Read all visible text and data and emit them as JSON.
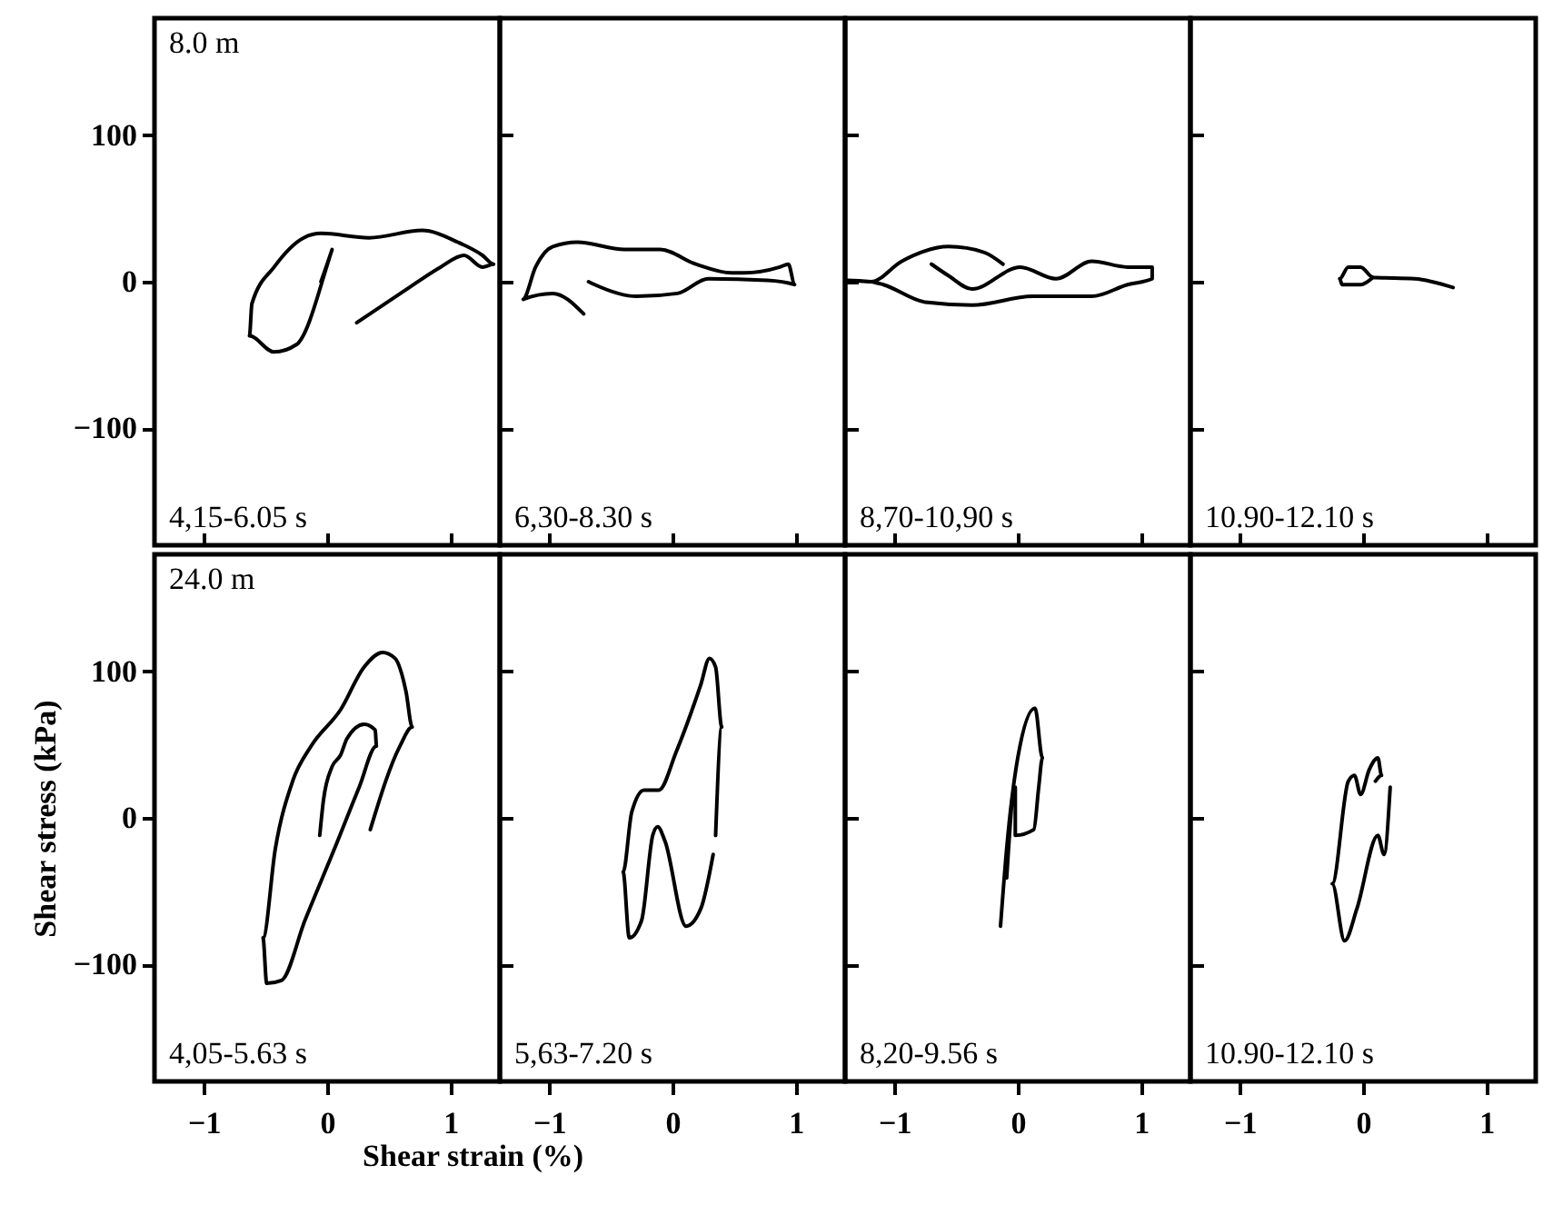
{
  "chart_data": [
    {
      "type": "line",
      "annotations": [
        "8.0 m",
        "4,15-6.05 s"
      ],
      "xlim": [
        -1.4,
        1.4
      ],
      "ylim": [
        -180,
        180
      ],
      "xticks": [
        -1,
        0,
        1
      ],
      "yticks": [
        -100,
        0,
        100
      ],
      "tick_labels": "y",
      "series": [
        {
          "color": "#000000",
          "x": [
            -0.05,
            0.04,
            -0.25,
            -0.43,
            -0.63,
            -0.61,
            -0.43,
            -0.19,
            -0.05,
            0.34,
            0.77,
            1.06,
            1.26,
            1.35,
            1.26,
            1.11,
            0.92,
            0.63,
            0.24
          ],
          "values": [
            0,
            22,
            -43,
            -48,
            -37,
            -15,
            10,
            30,
            33,
            30,
            35,
            27,
            18,
            12,
            10,
            18,
            10,
            -6,
            -28
          ]
        }
      ]
    },
    {
      "type": "line",
      "annotations": [
        "6,30-8.30 s"
      ],
      "xlim": [
        -1.4,
        1.4
      ],
      "ylim": [
        -180,
        180
      ],
      "xticks": [
        -1,
        0,
        1
      ],
      "yticks": [
        -100,
        0,
        100
      ],
      "tick_labels": false,
      "series": [
        {
          "color": "#000000",
          "x": [
            -0.72,
            -0.97,
            -1.21,
            -1.11,
            -0.97,
            -0.77,
            -0.39,
            -0.1,
            0.19,
            0.48,
            0.58,
            0.87,
            0.94,
            0.99,
            0.77,
            0.29,
            0.04,
            -0.29,
            -0.63,
            -0.68
          ],
          "values": [
            -22,
            -8,
            -12,
            10,
            24,
            27,
            22,
            22,
            12,
            6,
            6,
            10,
            12,
            -2,
            1,
            2,
            -8,
            -10,
            -2,
            0
          ]
        }
      ]
    },
    {
      "type": "line",
      "annotations": [
        "8,70-10,90 s"
      ],
      "xlim": [
        -1.4,
        1.4
      ],
      "ylim": [
        -180,
        180
      ],
      "xticks": [
        -1,
        0,
        1
      ],
      "yticks": [
        -100,
        0,
        100
      ],
      "tick_labels": false,
      "series": [
        {
          "color": "#000000",
          "x": [
            -0.12,
            -0.27,
            -0.56,
            -0.94,
            -1.19,
            -1.38,
            -1.19,
            -1.09,
            -0.75,
            -0.37,
            0.12,
            0.6,
            0.89,
            1.09,
            1.09,
            0.89,
            0.6,
            0.31,
            0.02,
            -0.37,
            -0.56,
            -0.7
          ],
          "values": [
            12,
            20,
            24,
            14,
            0,
            1,
            0,
            -2,
            -14,
            -16,
            -10,
            -10,
            -2,
            2,
            10,
            10,
            14,
            2,
            10,
            -5,
            4,
            12
          ]
        }
      ]
    },
    {
      "type": "line",
      "annotations": [
        "10.90-12.10 s"
      ],
      "xlim": [
        -1.4,
        1.4
      ],
      "ylim": [
        -180,
        180
      ],
      "xticks": [
        -1,
        0,
        1
      ],
      "yticks": [
        -100,
        0,
        100
      ],
      "tick_labels": false,
      "series": [
        {
          "color": "#000000",
          "x": [
            0.73,
            0.42,
            0.08,
            -0.02,
            -0.12,
            -0.19,
            -0.17,
            -0.02,
            0.08
          ],
          "values": [
            -4,
            2,
            3,
            10,
            10,
            2,
            -2,
            -2,
            3
          ]
        }
      ]
    },
    {
      "type": "line",
      "annotations": [
        "24.0 m",
        "4,05-5.63 s"
      ],
      "xlabel": "Shear strain (%)",
      "ylabel": "Shear stress (kPa)",
      "xlim": [
        -1.4,
        1.4
      ],
      "ylim": [
        -180,
        180
      ],
      "xticks": [
        -1,
        0,
        1
      ],
      "yticks": [
        -100,
        0,
        100
      ],
      "series": [
        {
          "color": "#000000",
          "x": [
            0.35,
            0.59,
            0.69,
            0.64,
            0.55,
            0.45,
            0.3,
            0.11,
            -0.13,
            -0.28,
            -0.42,
            -0.52,
            -0.49,
            -0.37,
            -0.18,
            0.06,
            0.26,
            0.4,
            0.39,
            0.3,
            0.16,
            0.11,
            0.04,
            -0.03,
            -0.06
          ],
          "values": [
            -8,
            49,
            62,
            86,
            109,
            113,
            103,
            74,
            49,
            25,
            -21,
            -82,
            -113,
            -111,
            -70,
            -21,
            21,
            49,
            60,
            64,
            54,
            43,
            35,
            12,
            -12
          ]
        }
      ]
    },
    {
      "type": "line",
      "annotations": [
        "5,63-7.20 s"
      ],
      "xlim": [
        -1.4,
        1.4
      ],
      "ylim": [
        -180,
        180
      ],
      "xticks": [
        -1,
        0,
        1
      ],
      "yticks": [
        -100,
        0,
        100
      ],
      "tick_labels": "x",
      "series": [
        {
          "color": "#000000",
          "x": [
            0.35,
            0.4,
            0.35,
            0.3,
            0.23,
            0.03,
            -0.11,
            -0.23,
            -0.33,
            -0.4,
            -0.35,
            -0.25,
            -0.16,
            -0.12,
            -0.06,
            0.11,
            0.23,
            0.33
          ],
          "values": [
            -12,
            62,
            103,
            109,
            91,
            45,
            19,
            19,
            4,
            -37,
            -82,
            -70,
            -12,
            -6,
            -16,
            -74,
            -62,
            -25
          ]
        }
      ]
    },
    {
      "type": "line",
      "annotations": [
        "8,20-9.56 s"
      ],
      "xlim": [
        -1.4,
        1.4
      ],
      "ylim": [
        -180,
        180
      ],
      "xticks": [
        -1,
        0,
        1
      ],
      "yticks": [
        -100,
        0,
        100
      ],
      "tick_labels": "x",
      "series": [
        {
          "color": "#000000",
          "x": [
            -0.14,
            -0.09,
            0.0,
            0.14,
            0.2,
            0.17,
            0.13,
            -0.02,
            -0.02,
            -0.09
          ],
          "values": [
            -74,
            -21,
            41,
            75,
            41,
            21,
            -8,
            -12,
            21,
            -41
          ]
        }
      ]
    },
    {
      "type": "line",
      "annotations": [
        "10.90-12.10 s"
      ],
      "xlim": [
        -1.4,
        1.4
      ],
      "ylim": [
        -180,
        180
      ],
      "xticks": [
        -1,
        0,
        1
      ],
      "yticks": [
        -100,
        0,
        100
      ],
      "tick_labels": "x",
      "series": [
        {
          "color": "#000000",
          "x": [
            0.22,
            0.17,
            0.12,
            -0.05,
            -0.15,
            -0.25,
            -0.12,
            -0.07,
            -0.02,
            0.05,
            0.12,
            0.15,
            0.1
          ],
          "values": [
            21,
            -25,
            -12,
            -62,
            -84,
            -45,
            25,
            29,
            16,
            33,
            41,
            29,
            25
          ]
        }
      ]
    }
  ]
}
